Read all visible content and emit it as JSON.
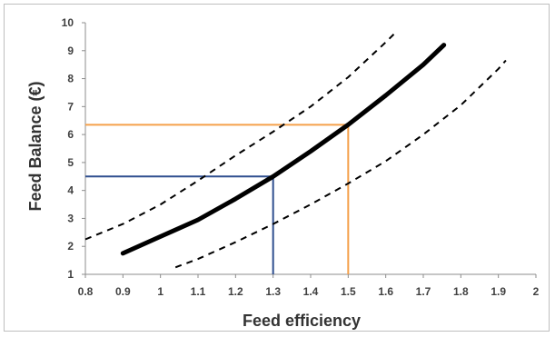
{
  "chart_data": {
    "type": "line",
    "title": "",
    "xlabel": "Feed efficiency",
    "ylabel": "Feed Balance (€)",
    "xlim": [
      0.8,
      2
    ],
    "ylim": [
      1,
      10
    ],
    "x_ticks": [
      "0.8",
      "0.9",
      "1",
      "1.1",
      "1.2",
      "1.3",
      "1.4",
      "1.5",
      "1.6",
      "1.7",
      "1.8",
      "1.9",
      "2"
    ],
    "y_ticks": [
      "1",
      "2",
      "3",
      "4",
      "5",
      "6",
      "7",
      "8",
      "9",
      "10"
    ],
    "grid": "none",
    "series": [
      {
        "style": "solid-thick",
        "color": "#000000",
        "points": [
          [
            0.9,
            1.75
          ],
          [
            1.0,
            2.35
          ],
          [
            1.1,
            2.95
          ],
          [
            1.2,
            3.7
          ],
          [
            1.3,
            4.5
          ],
          [
            1.4,
            5.4
          ],
          [
            1.5,
            6.35
          ],
          [
            1.6,
            7.4
          ],
          [
            1.7,
            8.5
          ],
          [
            1.755,
            9.2
          ]
        ]
      },
      {
        "style": "dashed",
        "color": "#000000",
        "points": [
          [
            0.8,
            2.25
          ],
          [
            0.9,
            2.8
          ],
          [
            1.0,
            3.5
          ],
          [
            1.1,
            4.35
          ],
          [
            1.2,
            5.25
          ],
          [
            1.3,
            6.1
          ],
          [
            1.4,
            7.0
          ],
          [
            1.5,
            8.05
          ],
          [
            1.6,
            9.3
          ],
          [
            1.63,
            9.7
          ]
        ]
      },
      {
        "style": "dashed",
        "color": "#000000",
        "points": [
          [
            1.04,
            1.25
          ],
          [
            1.1,
            1.55
          ],
          [
            1.2,
            2.15
          ],
          [
            1.3,
            2.8
          ],
          [
            1.4,
            3.5
          ],
          [
            1.5,
            4.25
          ],
          [
            1.6,
            5.05
          ],
          [
            1.7,
            6.0
          ],
          [
            1.8,
            7.05
          ],
          [
            1.9,
            8.35
          ],
          [
            1.92,
            8.65
          ]
        ]
      }
    ],
    "reference_lines": [
      {
        "color": "#2f4f8f",
        "x": 1.3,
        "y": 4.5
      },
      {
        "color": "#f5a04a",
        "x": 1.5,
        "y": 6.35
      }
    ]
  }
}
